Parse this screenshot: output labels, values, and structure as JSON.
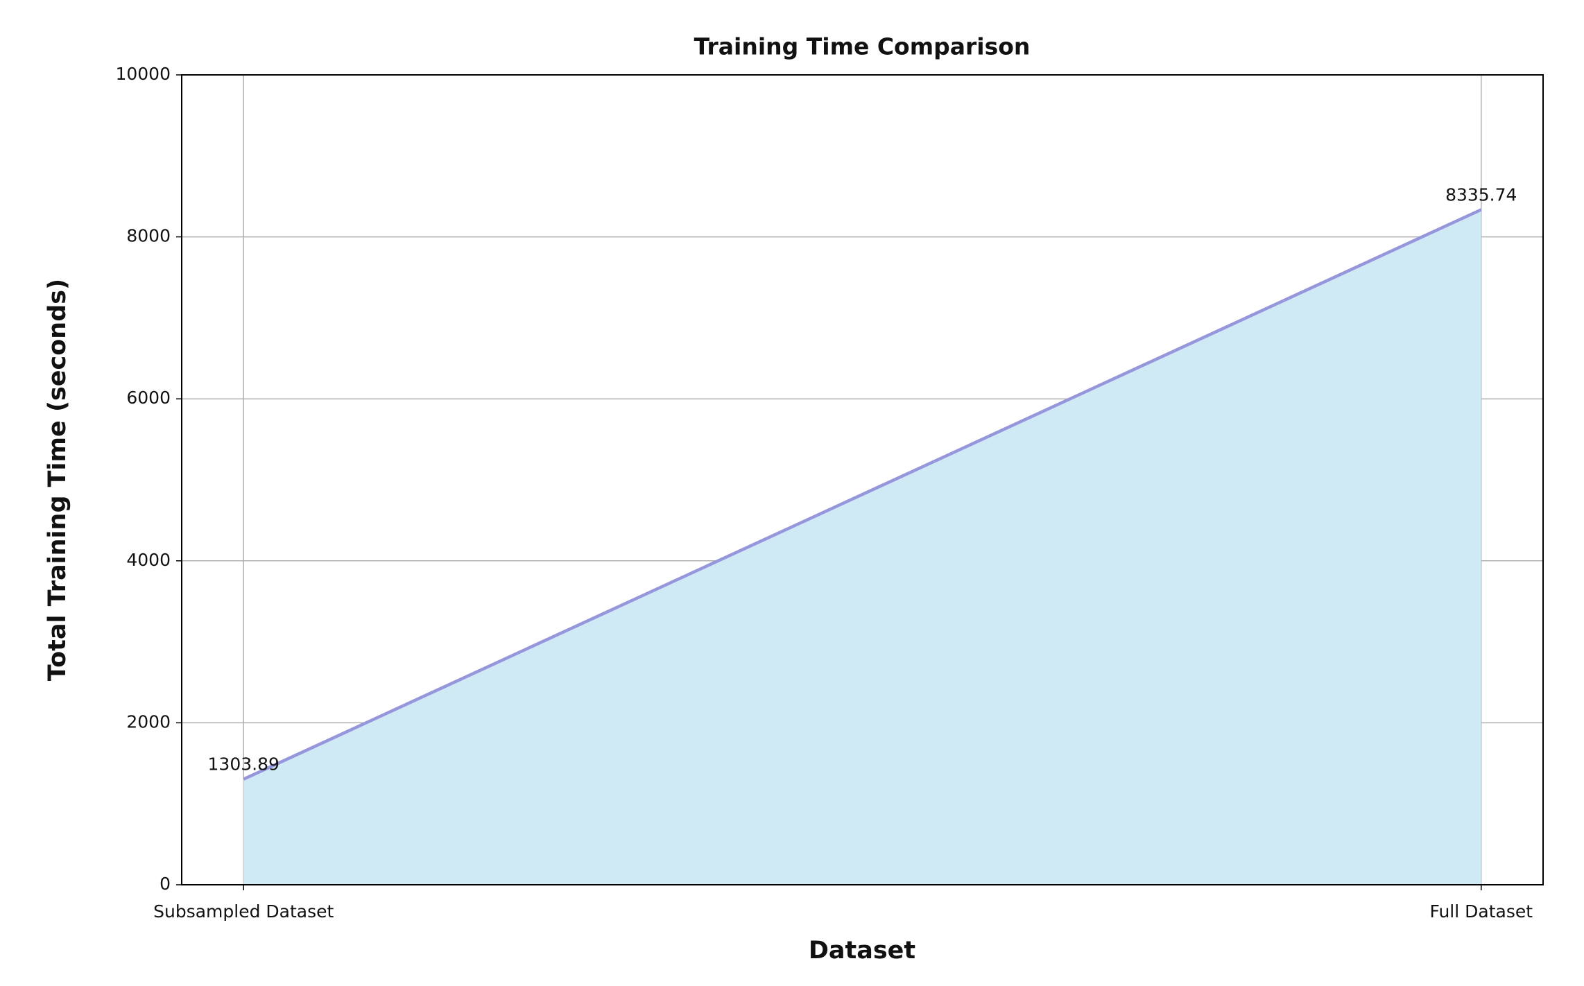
{
  "chart_data": {
    "type": "area",
    "title": "Training Time Comparison",
    "x_label": "Dataset",
    "y_label": "Total Training Time (seconds)",
    "categories": [
      "Subsampled Dataset",
      "Full Dataset"
    ],
    "values": [
      1303.89,
      8335.74
    ],
    "color": "#cfe9f5",
    "line_color": "#9696dc",
    "ylim": [
      0,
      10000
    ],
    "yticks": [
      0,
      2000,
      4000,
      6000,
      8000,
      10000
    ],
    "grid": true
  }
}
